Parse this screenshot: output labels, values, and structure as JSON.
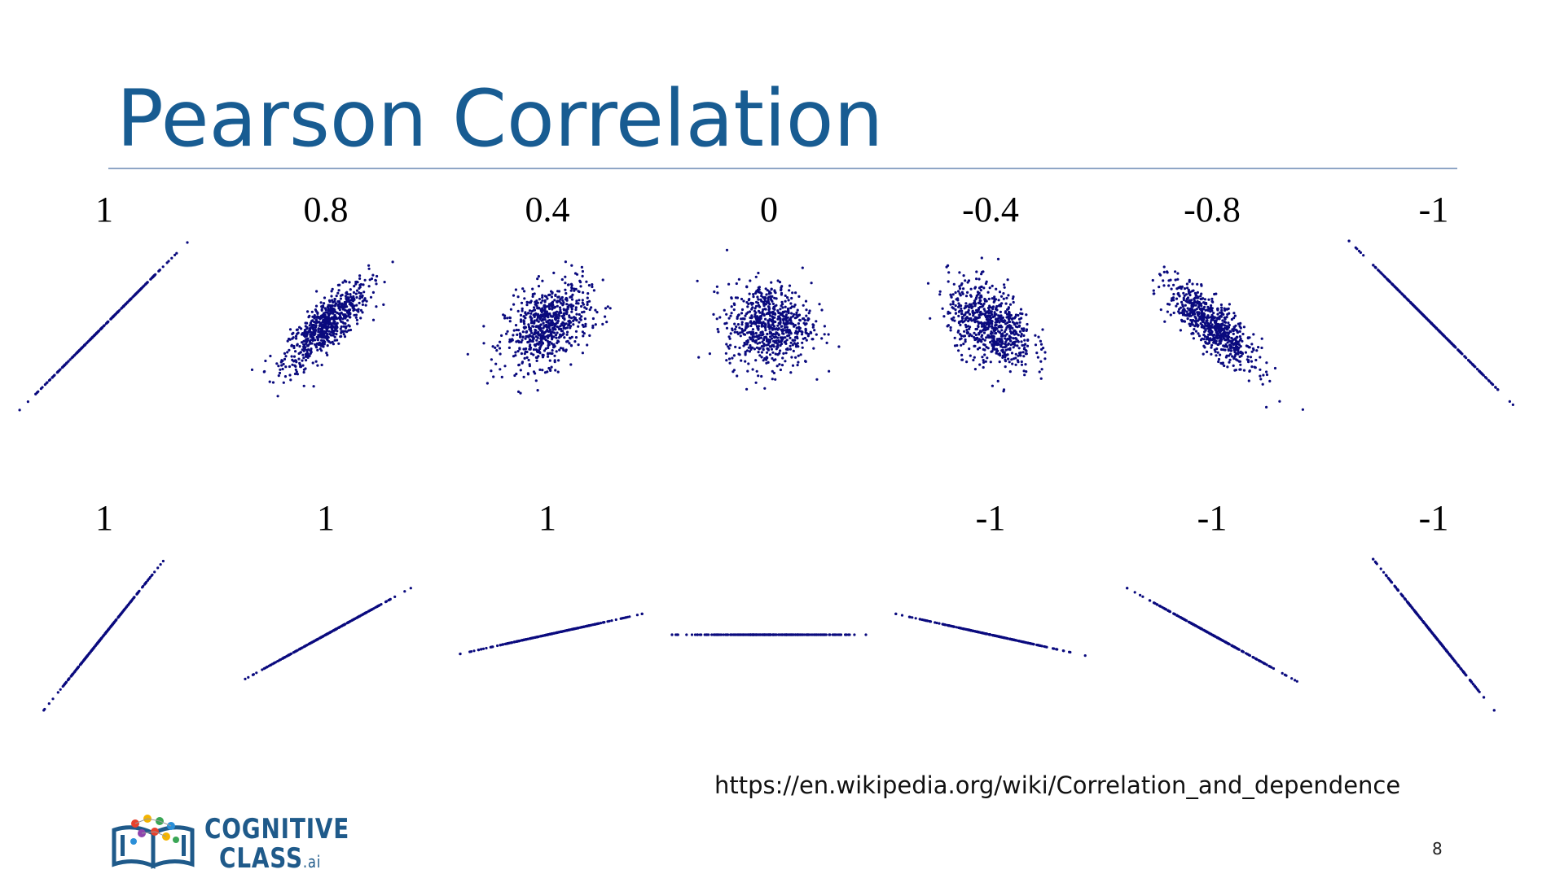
{
  "slide": {
    "title": "Pearson Correlation",
    "source_link": "https://en.wikipedia.org/wiki/Correlation_and_dependence",
    "page_number": "8",
    "logo": {
      "line1": "COGNITIVE",
      "line2": "CLASS",
      "suffix": ".ai"
    }
  },
  "colors": {
    "title": "#185c92",
    "points": "#0a0a7e",
    "rule": "#8fa6c6"
  },
  "icons": {
    "logo": "book-network-icon"
  },
  "chart_data": [
    {
      "type": "scatter",
      "row": 1,
      "panels": [
        {
          "label": "1",
          "correlation": 1,
          "shape": "line",
          "slope": 1
        },
        {
          "label": "0.8",
          "correlation": 0.8,
          "shape": "cloud"
        },
        {
          "label": "0.4",
          "correlation": 0.4,
          "shape": "cloud"
        },
        {
          "label": "0",
          "correlation": 0,
          "shape": "cloud"
        },
        {
          "label": "-0.4",
          "correlation": -0.4,
          "shape": "cloud"
        },
        {
          "label": "-0.8",
          "correlation": -0.8,
          "shape": "cloud"
        },
        {
          "label": "-1",
          "correlation": -1,
          "shape": "line",
          "slope": -1
        }
      ]
    },
    {
      "type": "scatter",
      "row": 2,
      "panels": [
        {
          "label": "1",
          "correlation": 1,
          "shape": "line",
          "slope": 1.25
        },
        {
          "label": "1",
          "correlation": 1,
          "shape": "line",
          "slope": 0.55
        },
        {
          "label": "1",
          "correlation": 1,
          "shape": "line",
          "slope": 0.22
        },
        {
          "label": "",
          "correlation": null,
          "shape": "line",
          "slope": 0
        },
        {
          "label": "-1",
          "correlation": -1,
          "shape": "line",
          "slope": -0.22
        },
        {
          "label": "-1",
          "correlation": -1,
          "shape": "line",
          "slope": -0.55
        },
        {
          "label": "-1",
          "correlation": -1,
          "shape": "line",
          "slope": -1.25
        }
      ]
    }
  ]
}
